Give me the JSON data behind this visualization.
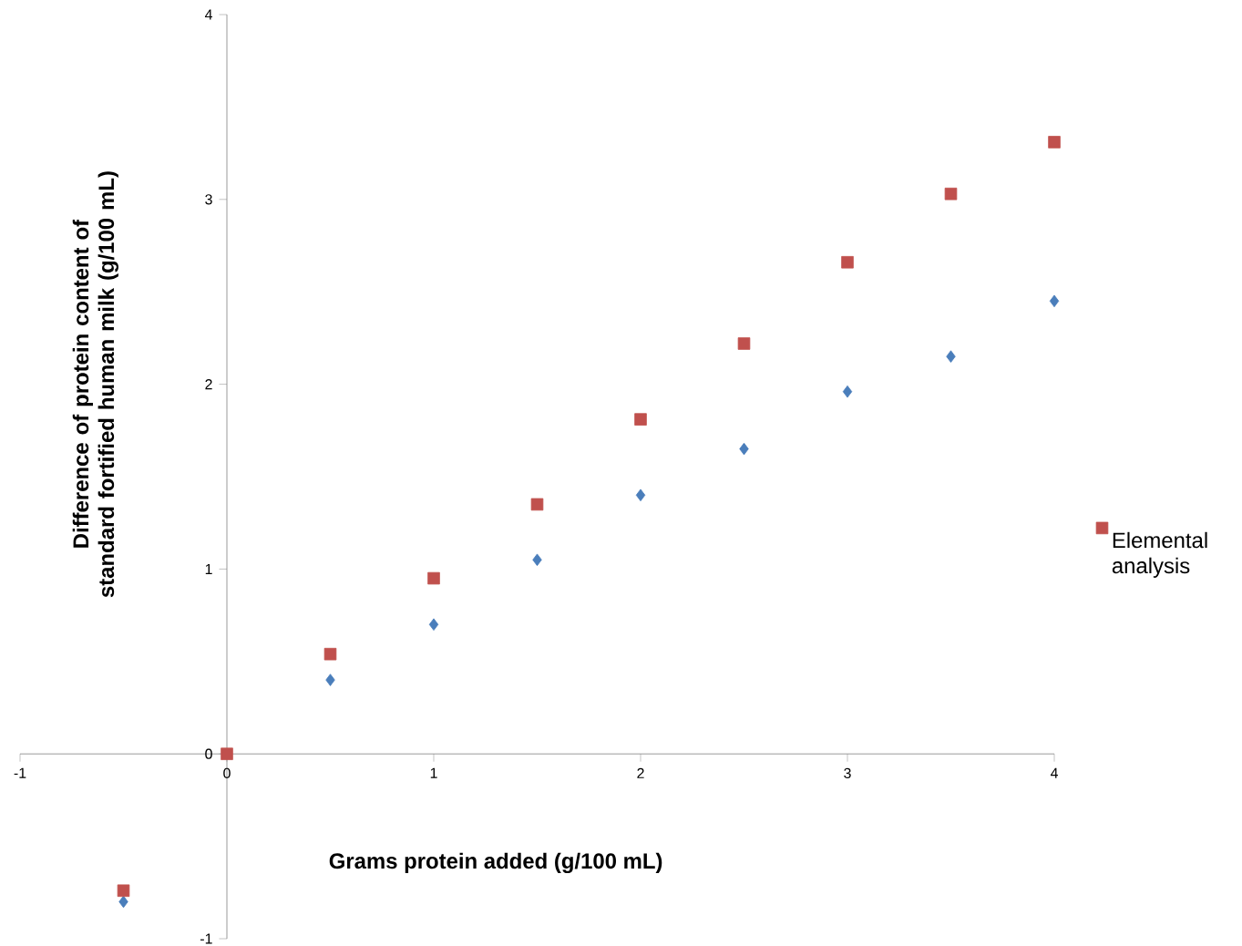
{
  "chart_data": {
    "type": "scatter",
    "xlabel": "Grams protein added (g/100 mL)",
    "ylabel": "Difference of protein content of standard fortified human milk (g/100 mL)",
    "x": [
      -0.5,
      0,
      0.5,
      1,
      1.5,
      2,
      2.5,
      3,
      3.5,
      4
    ],
    "series": [
      {
        "color": "#4a7ebb",
        "marker": "diamond",
        "values": [
          -0.8,
          null,
          0.4,
          0.7,
          1.05,
          1.4,
          1.65,
          1.96,
          2.15,
          2.45
        ]
      },
      {
        "name": "Elemental analysis",
        "color": "#c0504d",
        "marker": "square",
        "values": [
          -0.74,
          0,
          0.54,
          0.95,
          1.35,
          1.81,
          2.22,
          2.66,
          3.03,
          3.31
        ]
      }
    ],
    "xlim": [
      -1,
      4
    ],
    "ylim": [
      -1,
      4
    ],
    "xticks": [
      -1,
      0,
      1,
      2,
      3,
      4
    ],
    "yticks": [
      -1,
      0,
      1,
      2,
      3,
      4
    ],
    "grid": false,
    "legend": "right"
  }
}
